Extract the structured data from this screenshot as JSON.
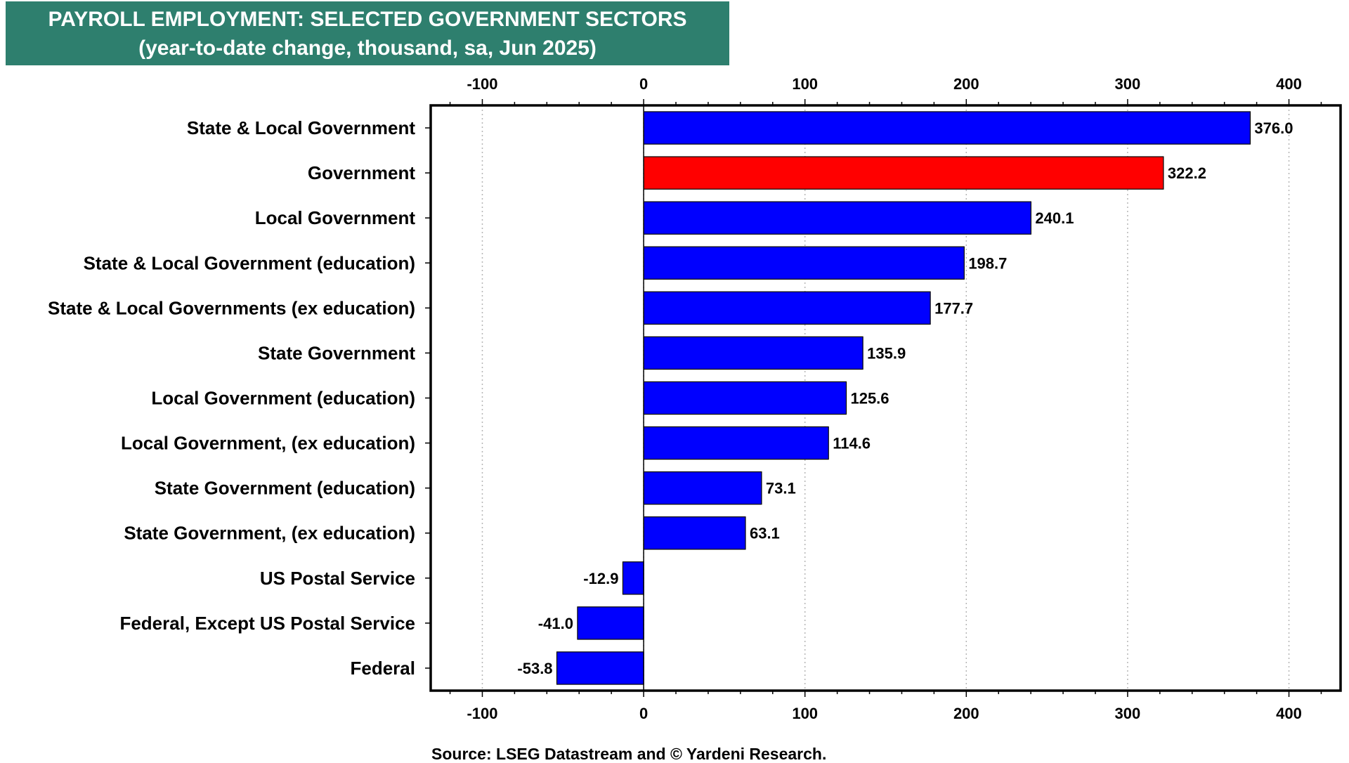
{
  "chart_data": {
    "type": "bar",
    "orientation": "horizontal",
    "title": "PAYROLL EMPLOYMENT: SELECTED GOVERNMENT SECTORS",
    "subtitle": "(year-to-date change, thousand, sa, Jun 2025)",
    "categories": [
      "State & Local Government",
      "Government",
      "Local Government",
      "State & Local Government (education)",
      "State & Local Governments (ex education)",
      "State Government",
      "Local Government (education)",
      "Local Government, (ex education)",
      "State Government (education)",
      "State Government, (ex education)",
      "US Postal Service",
      "Federal, Except US Postal Service",
      "Federal"
    ],
    "values": [
      376.0,
      322.2,
      240.1,
      198.7,
      177.7,
      135.9,
      125.6,
      114.6,
      73.1,
      63.1,
      -12.9,
      -41.0,
      -53.8
    ],
    "value_labels": [
      "376.0",
      "322.2",
      "240.1",
      "198.7",
      "177.7",
      "135.9",
      "125.6",
      "114.6",
      "73.1",
      "63.1",
      "-12.9",
      "-41.0",
      "-53.8"
    ],
    "highlight_category": "Government",
    "colors": {
      "default": "#0000ff",
      "highlight": "#ff0000",
      "title_bg": "#2e7f6e"
    },
    "xlim": [
      -132,
      432
    ],
    "xticks": [
      -100,
      0,
      100,
      200,
      300,
      400
    ],
    "xtick_labels": [
      "-100",
      "0",
      "100",
      "200",
      "300",
      "400"
    ],
    "grid": "vertical dotted",
    "source": "Source: LSEG Datastream and © Yardeni Research."
  }
}
